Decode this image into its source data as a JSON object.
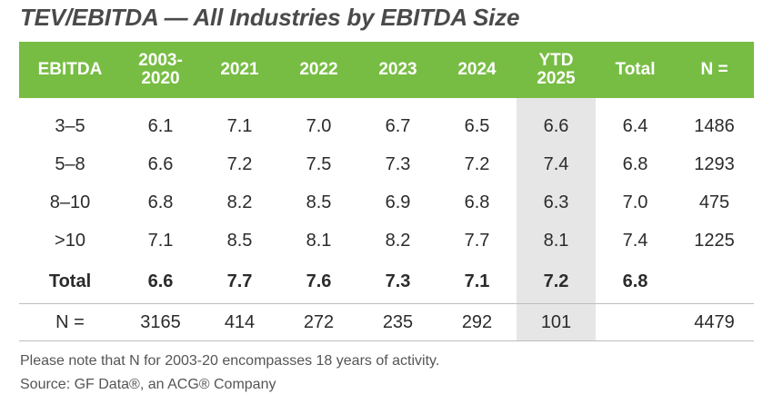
{
  "title": "TEV/EBITDA — All Industries by EBITDA Size",
  "chart_data": {
    "type": "table",
    "highlight_column": "YTD 2025",
    "headers": [
      "EBITDA",
      "2003-2020",
      "2021",
      "2022",
      "2023",
      "2024",
      "YTD 2025",
      "Total",
      "N ="
    ],
    "header_lines": [
      [
        "EBITDA"
      ],
      [
        "2003-",
        "2020"
      ],
      [
        "2021"
      ],
      [
        "2022"
      ],
      [
        "2023"
      ],
      [
        "2024"
      ],
      [
        "YTD",
        "2025"
      ],
      [
        "Total"
      ],
      [
        "N ="
      ]
    ],
    "rows": [
      [
        "3–5",
        "6.1",
        "7.1",
        "7.0",
        "6.7",
        "6.5",
        "6.6",
        "6.4",
        "1486"
      ],
      [
        "5–8",
        "6.6",
        "7.2",
        "7.5",
        "7.3",
        "7.2",
        "7.4",
        "6.8",
        "1293"
      ],
      [
        "8–10",
        "6.8",
        "8.2",
        "8.5",
        "6.9",
        "6.8",
        "6.3",
        "7.0",
        "475"
      ],
      [
        ">10",
        "7.1",
        "8.5",
        "8.1",
        "8.2",
        "7.7",
        "8.1",
        "7.4",
        "1225"
      ]
    ],
    "total_row": [
      "Total",
      "6.6",
      "7.7",
      "7.6",
      "7.3",
      "7.1",
      "7.2",
      "6.8",
      ""
    ],
    "n_row": [
      "N =",
      "3165",
      "414",
      "272",
      "235",
      "292",
      "101",
      "",
      "4479"
    ]
  },
  "notes": [
    "Please note that N for 2003-20 encompasses 18 years of activity.",
    "Source: GF Data®, an ACG® Company"
  ],
  "colors": {
    "header_bg": "#77bd43",
    "highlight_bg": "#e6e6e6"
  }
}
